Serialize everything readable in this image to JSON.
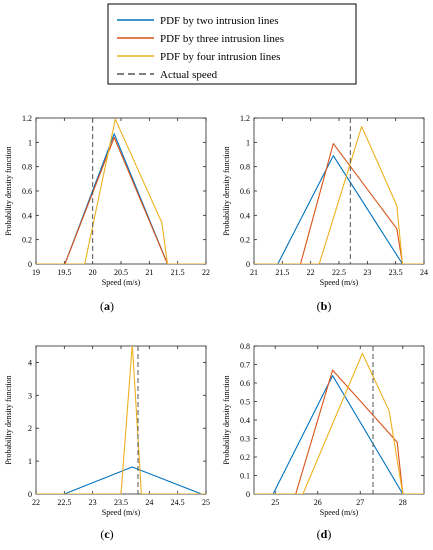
{
  "legend": {
    "entries": [
      {
        "label": "PDF by two intrusion lines",
        "color": "#0072BD",
        "dash": false
      },
      {
        "label": "PDF by three intrusion lines",
        "color": "#D95319",
        "dash": false
      },
      {
        "label": "PDF by four intrusion lines",
        "color": "#EDB120",
        "dash": false
      },
      {
        "label": "Actual speed",
        "color": "#555555",
        "dash": true
      }
    ]
  },
  "chart_data": [
    {
      "type": "line",
      "panel": "(a)",
      "panel_label": "a",
      "xlabel": "Speed (m/s)",
      "ylabel": "Probability density function",
      "xlim": [
        19,
        22
      ],
      "ylim": [
        0,
        1.2
      ],
      "xticks": [
        19,
        19.5,
        20,
        20.5,
        21,
        21.5,
        22
      ],
      "xtick_labels": [
        "19",
        "19.5",
        "20",
        "20.5",
        "21",
        "21.5",
        "22"
      ],
      "yticks": [
        0,
        0.2,
        0.4,
        0.6,
        0.8,
        1,
        1.2
      ],
      "ytick_labels": [
        "0",
        "0.2",
        "0.4",
        "0.6",
        "0.8",
        "1",
        "1.2"
      ],
      "actual_speed": 20.0,
      "series": [
        {
          "name": "PDF by two intrusion lines",
          "color": "#0072BD",
          "x": [
            19.0,
            19.51,
            20.38,
            21.32,
            22.0
          ],
          "y": [
            0,
            0,
            1.07,
            0,
            0
          ]
        },
        {
          "name": "PDF by three intrusion lines",
          "color": "#D95319",
          "x": [
            19.0,
            19.51,
            20.38,
            21.32,
            22.0
          ],
          "y": [
            0,
            0,
            1.04,
            0,
            0
          ]
        },
        {
          "name": "PDF by four intrusion lines",
          "color": "#EDB120",
          "x": [
            19.0,
            19.86,
            20.4,
            21.22,
            21.32,
            22.0
          ],
          "y": [
            0,
            0,
            1.19,
            0.34,
            0,
            0
          ]
        }
      ]
    },
    {
      "type": "line",
      "panel": "(b)",
      "panel_label": "b",
      "xlabel": "Speed (m/s)",
      "ylabel": "Probability density function",
      "xlim": [
        21,
        24
      ],
      "ylim": [
        0,
        1.2
      ],
      "xticks": [
        21,
        21.5,
        22,
        22.5,
        23,
        23.5,
        24
      ],
      "xtick_labels": [
        "21",
        "21.5",
        "22",
        "22.5",
        "23",
        "23.5",
        "24"
      ],
      "yticks": [
        0,
        0.2,
        0.4,
        0.6,
        0.8,
        1,
        1.2
      ],
      "ytick_labels": [
        "0",
        "0.2",
        "0.4",
        "0.6",
        "0.8",
        "1",
        "1.2"
      ],
      "actual_speed": 22.7,
      "series": [
        {
          "name": "PDF by two intrusion lines",
          "color": "#0072BD",
          "x": [
            21.0,
            21.42,
            22.4,
            23.62,
            24.0
          ],
          "y": [
            0,
            0,
            0.89,
            0,
            0
          ]
        },
        {
          "name": "PDF by three intrusion lines",
          "color": "#D95319",
          "x": [
            21.0,
            21.82,
            22.4,
            23.52,
            23.62,
            24.0
          ],
          "y": [
            0,
            0,
            0.99,
            0.29,
            0,
            0
          ]
        },
        {
          "name": "PDF by four intrusion lines",
          "color": "#EDB120",
          "x": [
            21.0,
            22.15,
            22.9,
            23.52,
            23.62,
            24.0
          ],
          "y": [
            0,
            0,
            1.13,
            0.48,
            0,
            0
          ]
        }
      ]
    },
    {
      "type": "line",
      "panel": "(c)",
      "panel_label": "c",
      "xlabel": "Speed (m/s)",
      "ylabel": "Probability density function",
      "xlim": [
        22,
        25
      ],
      "ylim": [
        0,
        4.5
      ],
      "xticks": [
        22,
        22.5,
        23,
        23.5,
        24,
        24.5,
        25
      ],
      "xtick_labels": [
        "22",
        "22.5",
        "23",
        "23.5",
        "24",
        "24.5",
        "25"
      ],
      "yticks": [
        0,
        1,
        2,
        3,
        4
      ],
      "ytick_labels": [
        "0",
        "1",
        "2",
        "3",
        "4"
      ],
      "actual_speed": 23.8,
      "series": [
        {
          "name": "PDF by two intrusion lines",
          "color": "#0072BD",
          "x": [
            22.0,
            22.5,
            23.7,
            24.92,
            25.0
          ],
          "y": [
            0,
            0,
            0.82,
            0,
            0
          ]
        },
        {
          "name": "PDF by four intrusion lines",
          "color": "#EDB120",
          "x": [
            22.0,
            23.5,
            23.7,
            23.86,
            25.0
          ],
          "y": [
            0,
            0,
            4.55,
            0,
            0
          ]
        }
      ]
    },
    {
      "type": "line",
      "panel": "(d)",
      "panel_label": "d",
      "xlabel": "Speed (m/s)",
      "ylabel": "Probability density function",
      "xlim": [
        24.5,
        28.5
      ],
      "ylim": [
        0,
        0.8
      ],
      "xticks": [
        25,
        26,
        27,
        28
      ],
      "xtick_labels": [
        "25",
        "26",
        "27",
        "28"
      ],
      "yticks": [
        0,
        0.1,
        0.2,
        0.3,
        0.4,
        0.5,
        0.6,
        0.7,
        0.8
      ],
      "ytick_labels": [
        "0",
        "0.1",
        "0.2",
        "0.3",
        "0.4",
        "0.5",
        "0.6",
        "0.7",
        "0.8"
      ],
      "actual_speed": 27.3,
      "series": [
        {
          "name": "PDF by two intrusion lines",
          "color": "#0072BD",
          "x": [
            24.5,
            24.95,
            26.35,
            28.0,
            28.5
          ],
          "y": [
            0,
            0,
            0.64,
            0,
            0
          ]
        },
        {
          "name": "PDF by three intrusion lines",
          "color": "#D95319",
          "x": [
            24.5,
            25.48,
            26.35,
            27.87,
            28.0,
            28.5
          ],
          "y": [
            0,
            0,
            0.67,
            0.28,
            0,
            0
          ]
        },
        {
          "name": "PDF by four intrusion lines",
          "color": "#EDB120",
          "x": [
            24.5,
            25.65,
            27.05,
            27.68,
            28.0,
            28.5
          ],
          "y": [
            0,
            0,
            0.76,
            0.45,
            0,
            0
          ]
        }
      ]
    }
  ]
}
